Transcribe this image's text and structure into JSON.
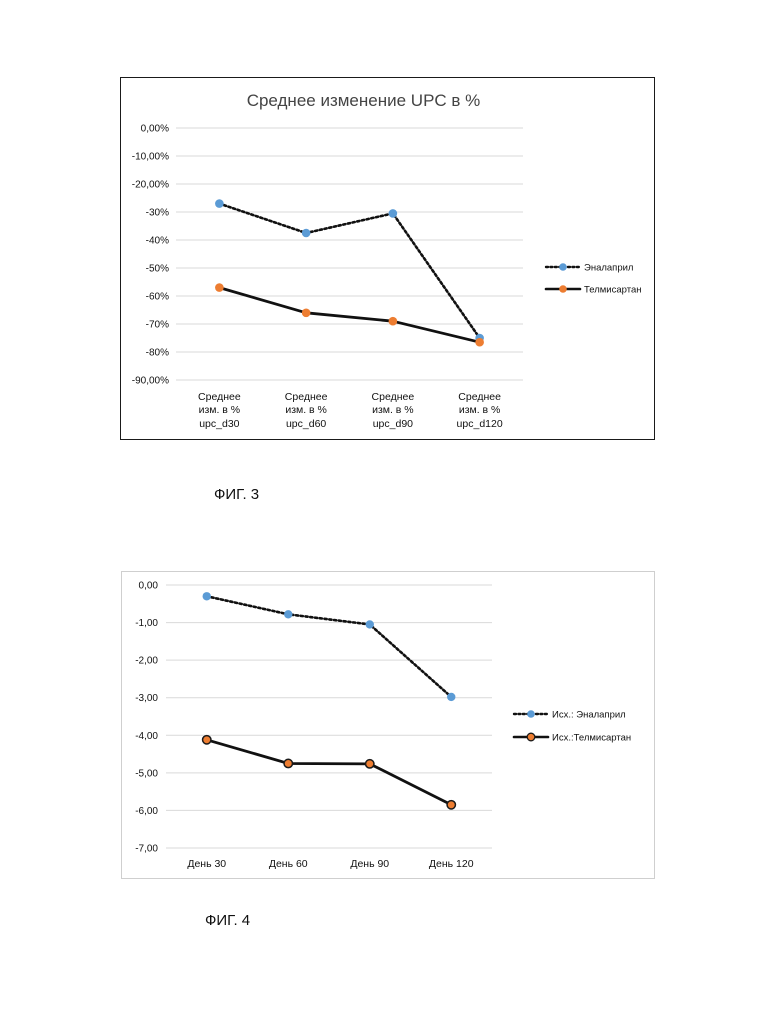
{
  "figures": [
    {
      "caption": "ФИГ. 3",
      "chart_data": {
        "type": "line",
        "title": "Среднее изменение UPC в %",
        "categories": [
          [
            "Среднее",
            "изм. в %",
            "upc_d30"
          ],
          [
            "Среднее",
            "изм. в %",
            "upc_d60"
          ],
          [
            "Среднее",
            "изм. в %",
            "upc_d90"
          ],
          [
            "Среднее",
            "изм. в %",
            "upc_d120"
          ]
        ],
        "y_tick_labels": [
          "0,00%",
          "-10,00%",
          "-20,00%",
          "-30%",
          "-40%",
          "-50%",
          "-60%",
          "-70%",
          "-80%",
          "-90,00%"
        ],
        "ylim": [
          -90,
          0
        ],
        "y_unit": "percent",
        "grid": true,
        "legend_position": "right",
        "series": [
          {
            "name": "Эналаприл",
            "values": [
              -27,
              -37.5,
              -30.5,
              -75
            ],
            "color": "#5b9bd5",
            "line_color": "#111111",
            "line_style": "dotted"
          },
          {
            "name": "Телмисартан",
            "values": [
              -57,
              -66,
              -69,
              -76.5
            ],
            "color": "#ed7d31",
            "line_color": "#111111",
            "line_style": "solid"
          }
        ]
      }
    },
    {
      "caption": "ФИГ. 4",
      "chart_data": {
        "type": "line",
        "title": "",
        "categories": [
          [
            "День 30"
          ],
          [
            "День 60"
          ],
          [
            "День 90"
          ],
          [
            "День 120"
          ]
        ],
        "y_tick_labels": [
          "0,00",
          "-1,00",
          "-2,00",
          "-3,00",
          "-4,00",
          "-5,00",
          "-6,00",
          "-7,00"
        ],
        "ylim": [
          -7,
          0
        ],
        "grid": true,
        "legend_position": "right",
        "series": [
          {
            "name": "Исх.: Эналаприл",
            "values": [
              -0.3,
              -0.78,
              -1.05,
              -2.98
            ],
            "color": "#5b9bd5",
            "line_color": "#111111",
            "line_style": "dotted"
          },
          {
            "name": "Исх.:Телмисартан",
            "values": [
              -4.12,
              -4.75,
              -4.76,
              -5.85
            ],
            "color": "#ed7d31",
            "line_color": "#111111",
            "line_style": "solid"
          }
        ]
      }
    }
  ]
}
